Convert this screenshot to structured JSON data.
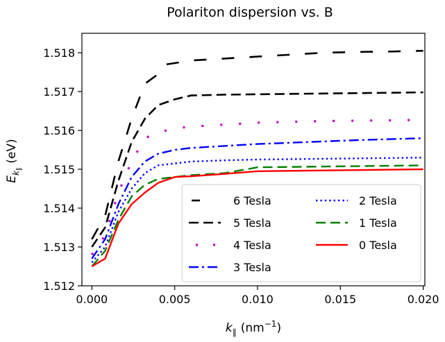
{
  "chart_data": {
    "type": "line",
    "title": "Polariton dispersion vs. B",
    "xlabel_main": "k",
    "xlabel_sub": "∥",
    "xlabel_unit_pre": "(nm",
    "xlabel_unit_exp": "−1",
    "xlabel_unit_post": ")",
    "ylabel_main": "E",
    "ylabel_sub": "k",
    "ylabel_subsub": "∥",
    "ylabel_unit": "(eV)",
    "xlim": [
      -0.0006,
      0.0201
    ],
    "ylim": [
      1.512,
      1.5185
    ],
    "xticks": [
      0.0,
      0.005,
      0.01,
      0.015,
      0.02
    ],
    "xtick_labels": [
      "0.000",
      "0.005",
      "0.010",
      "0.015",
      "0.020"
    ],
    "yticks": [
      1.512,
      1.513,
      1.514,
      1.515,
      1.516,
      1.517,
      1.518
    ],
    "ytick_labels": [
      "1.512",
      "1.513",
      "1.514",
      "1.515",
      "1.516",
      "1.517",
      "1.518"
    ],
    "grid": false,
    "legend_position": "lower-right",
    "legend_columns": 2,
    "series": [
      {
        "name": "6 Tesla",
        "color": "#000000",
        "dash": "dashed-long",
        "width": 2.6,
        "x": [
          0.0,
          0.0008,
          0.0016,
          0.0024,
          0.0032,
          0.004,
          0.0045,
          0.006,
          0.008,
          0.01,
          0.012,
          0.014,
          0.016,
          0.018,
          0.02
        ],
        "y": [
          1.5132,
          1.5138,
          1.5152,
          1.5163,
          1.5172,
          1.51745,
          1.5177,
          1.5178,
          1.51785,
          1.5179,
          1.51795,
          1.518,
          1.51802,
          1.51803,
          1.51805
        ]
      },
      {
        "name": "5 Tesla",
        "color": "#000000",
        "dash": "dashed",
        "width": 2.6,
        "x": [
          0.0,
          0.0008,
          0.0016,
          0.0024,
          0.0032,
          0.004,
          0.005,
          0.006,
          0.008,
          0.01,
          0.012,
          0.014,
          0.016,
          0.018,
          0.02
        ],
        "y": [
          1.513,
          1.5135,
          1.5147,
          1.5157,
          1.5163,
          1.51665,
          1.5168,
          1.5169,
          1.51692,
          1.51693,
          1.51694,
          1.51695,
          1.51696,
          1.51697,
          1.51698
        ]
      },
      {
        "name": "4 Tesla",
        "color": "#bf00bf",
        "dash": "dotted-sparse",
        "width": 3.2,
        "x": [
          0.0,
          0.0008,
          0.0016,
          0.0024,
          0.0032,
          0.004,
          0.005,
          0.006,
          0.008,
          0.01,
          0.012,
          0.014,
          0.016,
          0.018,
          0.02
        ],
        "y": [
          1.5128,
          1.5133,
          1.5144,
          1.5152,
          1.5158,
          1.51595,
          1.51605,
          1.5161,
          1.51615,
          1.5162,
          1.51622,
          1.51624,
          1.51625,
          1.51626,
          1.51627
        ]
      },
      {
        "name": "3 Tesla",
        "color": "#0000ff",
        "dash": "dashdot",
        "width": 2.4,
        "x": [
          0.0,
          0.0008,
          0.0016,
          0.0024,
          0.0032,
          0.004,
          0.005,
          0.006,
          0.008,
          0.01,
          0.013,
          0.016,
          0.02
        ],
        "y": [
          1.5127,
          1.5132,
          1.5141,
          1.5148,
          1.5152,
          1.5154,
          1.5155,
          1.51555,
          1.5156,
          1.51565,
          1.5157,
          1.51575,
          1.5158
        ]
      },
      {
        "name": "2 Tesla",
        "color": "#0000ff",
        "dash": "dotted",
        "width": 2.4,
        "x": [
          0.0,
          0.0008,
          0.0016,
          0.0024,
          0.0032,
          0.004,
          0.005,
          0.006,
          0.008,
          0.01,
          0.012,
          0.014,
          0.016,
          0.018,
          0.02
        ],
        "y": [
          1.5126,
          1.513,
          1.5139,
          1.5145,
          1.5149,
          1.5151,
          1.51515,
          1.5152,
          1.51523,
          1.51525,
          1.51526,
          1.51527,
          1.51528,
          1.51529,
          1.5153
        ]
      },
      {
        "name": "1 Tesla",
        "color": "#008000",
        "dash": "dashed",
        "width": 2.4,
        "x": [
          0.0,
          0.0008,
          0.0016,
          0.0024,
          0.0032,
          0.004,
          0.005,
          0.006,
          0.008,
          0.01,
          0.012,
          0.014,
          0.016,
          0.018,
          0.02
        ],
        "y": [
          1.5125,
          1.5129,
          1.5137,
          1.5143,
          1.5146,
          1.51475,
          1.5148,
          1.51485,
          1.5149,
          1.51505,
          1.51506,
          1.51507,
          1.51508,
          1.51509,
          1.5151
        ]
      },
      {
        "name": "0 Tesla",
        "color": "#ff0000",
        "dash": "solid",
        "width": 2.4,
        "x": [
          0.0,
          0.0008,
          0.0016,
          0.0024,
          0.0032,
          0.004,
          0.005,
          0.006,
          0.008,
          0.01,
          0.012,
          0.014,
          0.016,
          0.018,
          0.02
        ],
        "y": [
          1.5125,
          1.5127,
          1.5136,
          1.5141,
          1.5144,
          1.51465,
          1.5148,
          1.51482,
          1.51488,
          1.51495,
          1.51496,
          1.51497,
          1.51498,
          1.51499,
          1.515
        ]
      }
    ],
    "legend_order": [
      "6 Tesla",
      "5 Tesla",
      "4 Tesla",
      "3 Tesla",
      "2 Tesla",
      "1 Tesla",
      "0 Tesla"
    ]
  }
}
